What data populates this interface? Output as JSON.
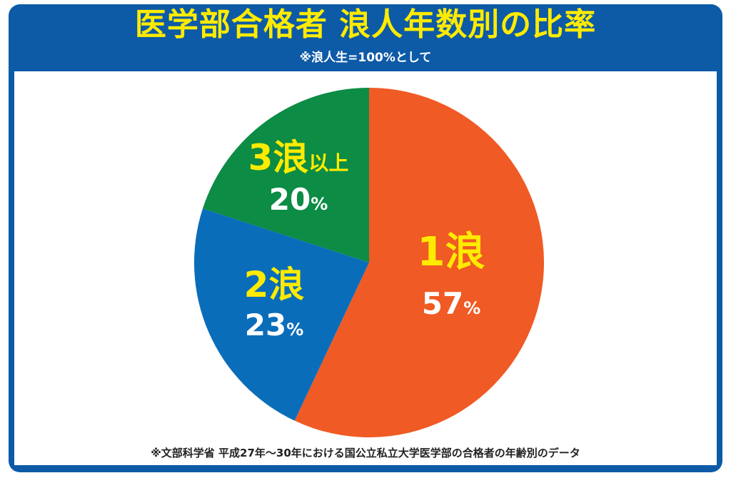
{
  "header": {
    "title": "医学部合格者 浪人年数別の比率",
    "subtitle": "※浪人生=100%として"
  },
  "footer": {
    "note": "※文部科学省 平成27年～30年における国公立私立大学医学部の合格者の年齢別のデータ"
  },
  "colors": {
    "frame": "#0d5aa7",
    "title": "#ffeb00",
    "label_name": "#ffeb00",
    "label_value": "#ffffff"
  },
  "chart_data": {
    "type": "pie",
    "unit": "%",
    "slices": [
      {
        "name": "1浪",
        "name_main": "1浪",
        "name_suffix": "",
        "value": 57,
        "color": "#f05a24"
      },
      {
        "name": "2浪",
        "name_main": "2浪",
        "name_suffix": "",
        "value": 23,
        "color": "#0a6dba"
      },
      {
        "name": "3浪以上",
        "name_main": "3浪",
        "name_suffix": "以上",
        "value": 20,
        "color": "#0c8c45"
      }
    ],
    "start": "12 o'clock",
    "direction": "clockwise",
    "legend": "none (labels on slices)"
  }
}
